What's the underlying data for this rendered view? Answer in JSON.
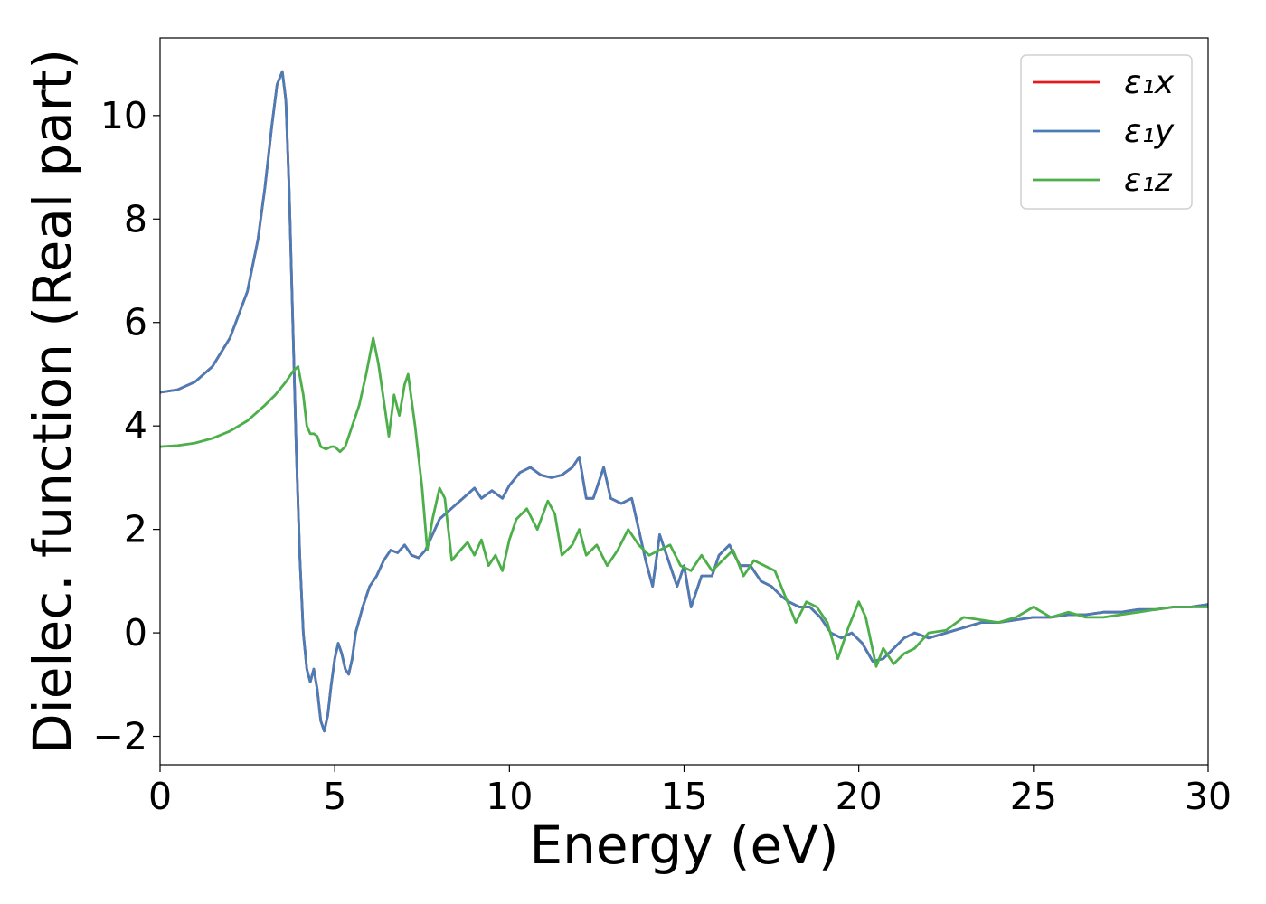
{
  "chart_data": {
    "type": "line",
    "xlabel": "Energy (eV)",
    "ylabel": "Dielec. function (Real part)",
    "xlim": [
      0,
      30
    ],
    "ylim": [
      -2.55,
      11.5
    ],
    "xticks": [
      0,
      5,
      10,
      15,
      20,
      25,
      30
    ],
    "xtick_labels": [
      "0",
      "5",
      "10",
      "15",
      "20",
      "25",
      "30"
    ],
    "yticks": [
      -2,
      0,
      2,
      4,
      6,
      8,
      10
    ],
    "ytick_labels": [
      "−2",
      "0",
      "2",
      "4",
      "6",
      "8",
      "10"
    ],
    "grid": false,
    "legend_position": "top-right",
    "series": [
      {
        "name": "ε₁x",
        "color": "#e41a1c",
        "x": [
          0,
          0.5,
          1,
          1.5,
          2,
          2.5,
          2.8,
          3.0,
          3.2,
          3.35,
          3.5,
          3.6,
          3.7,
          3.8,
          3.9,
          4.0,
          4.1,
          4.2,
          4.3,
          4.4,
          4.5,
          4.6,
          4.7,
          4.8,
          4.9,
          5.0,
          5.1,
          5.2,
          5.3,
          5.4,
          5.5,
          5.6,
          5.8,
          6.0,
          6.2,
          6.4,
          6.6,
          6.8,
          7.0,
          7.2,
          7.4,
          7.6,
          7.8,
          8.0,
          8.5,
          9.0,
          9.2,
          9.5,
          9.8,
          10.0,
          10.3,
          10.6,
          10.9,
          11.2,
          11.5,
          11.8,
          12.0,
          12.2,
          12.4,
          12.7,
          12.9,
          13.2,
          13.5,
          13.7,
          13.9,
          14.1,
          14.3,
          14.5,
          14.8,
          15.0,
          15.2,
          15.5,
          15.8,
          16.0,
          16.3,
          16.6,
          16.9,
          17.2,
          17.5,
          17.8,
          18.0,
          18.3,
          18.6,
          18.9,
          19.2,
          19.5,
          19.8,
          20.1,
          20.4,
          20.7,
          21.0,
          21.3,
          21.6,
          22.0,
          22.5,
          23.0,
          23.5,
          24.0,
          24.5,
          25.0,
          25.5,
          26.0,
          26.5,
          27.0,
          27.5,
          28.0,
          28.5,
          29.0,
          29.5,
          30.0
        ],
        "y": [
          4.65,
          4.7,
          4.85,
          5.15,
          5.7,
          6.6,
          7.6,
          8.6,
          9.8,
          10.6,
          10.85,
          10.3,
          8.5,
          6.0,
          3.5,
          1.5,
          0.0,
          -0.7,
          -0.95,
          -0.7,
          -1.1,
          -1.7,
          -1.9,
          -1.6,
          -1.0,
          -0.5,
          -0.2,
          -0.4,
          -0.7,
          -0.8,
          -0.5,
          0.0,
          0.5,
          0.9,
          1.1,
          1.4,
          1.6,
          1.55,
          1.7,
          1.5,
          1.45,
          1.6,
          1.9,
          2.2,
          2.5,
          2.8,
          2.6,
          2.75,
          2.6,
          2.85,
          3.1,
          3.2,
          3.05,
          3.0,
          3.05,
          3.2,
          3.4,
          2.6,
          2.6,
          3.2,
          2.6,
          2.5,
          2.6,
          2.0,
          1.4,
          0.9,
          1.9,
          1.5,
          0.9,
          1.3,
          0.5,
          1.1,
          1.1,
          1.5,
          1.7,
          1.3,
          1.3,
          1.0,
          0.9,
          0.7,
          0.6,
          0.5,
          0.5,
          0.3,
          0.0,
          -0.1,
          0.0,
          -0.2,
          -0.55,
          -0.5,
          -0.3,
          -0.1,
          0.0,
          -0.1,
          0.0,
          0.1,
          0.2,
          0.2,
          0.25,
          0.3,
          0.3,
          0.35,
          0.35,
          0.4,
          0.4,
          0.45,
          0.45,
          0.5,
          0.5,
          0.55
        ]
      },
      {
        "name": "ε₁y",
        "color": "#4a7db8",
        "x": [
          0,
          0.5,
          1,
          1.5,
          2,
          2.5,
          2.8,
          3.0,
          3.2,
          3.35,
          3.5,
          3.6,
          3.7,
          3.8,
          3.9,
          4.0,
          4.1,
          4.2,
          4.3,
          4.4,
          4.5,
          4.6,
          4.7,
          4.8,
          4.9,
          5.0,
          5.1,
          5.2,
          5.3,
          5.4,
          5.5,
          5.6,
          5.8,
          6.0,
          6.2,
          6.4,
          6.6,
          6.8,
          7.0,
          7.2,
          7.4,
          7.6,
          7.8,
          8.0,
          8.5,
          9.0,
          9.2,
          9.5,
          9.8,
          10.0,
          10.3,
          10.6,
          10.9,
          11.2,
          11.5,
          11.8,
          12.0,
          12.2,
          12.4,
          12.7,
          12.9,
          13.2,
          13.5,
          13.7,
          13.9,
          14.1,
          14.3,
          14.5,
          14.8,
          15.0,
          15.2,
          15.5,
          15.8,
          16.0,
          16.3,
          16.6,
          16.9,
          17.2,
          17.5,
          17.8,
          18.0,
          18.3,
          18.6,
          18.9,
          19.2,
          19.5,
          19.8,
          20.1,
          20.4,
          20.7,
          21.0,
          21.3,
          21.6,
          22.0,
          22.5,
          23.0,
          23.5,
          24.0,
          24.5,
          25.0,
          25.5,
          26.0,
          26.5,
          27.0,
          27.5,
          28.0,
          28.5,
          29.0,
          29.5,
          30.0
        ],
        "y": [
          4.65,
          4.7,
          4.85,
          5.15,
          5.7,
          6.6,
          7.6,
          8.6,
          9.8,
          10.6,
          10.85,
          10.3,
          8.5,
          6.0,
          3.5,
          1.5,
          0.0,
          -0.7,
          -0.95,
          -0.7,
          -1.1,
          -1.7,
          -1.9,
          -1.6,
          -1.0,
          -0.5,
          -0.2,
          -0.4,
          -0.7,
          -0.8,
          -0.5,
          0.0,
          0.5,
          0.9,
          1.1,
          1.4,
          1.6,
          1.55,
          1.7,
          1.5,
          1.45,
          1.6,
          1.9,
          2.2,
          2.5,
          2.8,
          2.6,
          2.75,
          2.6,
          2.85,
          3.1,
          3.2,
          3.05,
          3.0,
          3.05,
          3.2,
          3.4,
          2.6,
          2.6,
          3.2,
          2.6,
          2.5,
          2.6,
          2.0,
          1.4,
          0.9,
          1.9,
          1.5,
          0.9,
          1.3,
          0.5,
          1.1,
          1.1,
          1.5,
          1.7,
          1.3,
          1.3,
          1.0,
          0.9,
          0.7,
          0.6,
          0.5,
          0.5,
          0.3,
          0.0,
          -0.1,
          0.0,
          -0.2,
          -0.55,
          -0.5,
          -0.3,
          -0.1,
          0.0,
          -0.1,
          0.0,
          0.1,
          0.2,
          0.2,
          0.25,
          0.3,
          0.3,
          0.35,
          0.35,
          0.4,
          0.4,
          0.45,
          0.45,
          0.5,
          0.5,
          0.55
        ]
      },
      {
        "name": "ε₁z",
        "color": "#4daf4a",
        "x": [
          0,
          0.5,
          1,
          1.5,
          2,
          2.5,
          3.0,
          3.3,
          3.6,
          3.8,
          3.95,
          4.1,
          4.2,
          4.3,
          4.4,
          4.5,
          4.6,
          4.75,
          4.9,
          5.0,
          5.15,
          5.3,
          5.5,
          5.7,
          5.9,
          6.1,
          6.25,
          6.4,
          6.55,
          6.7,
          6.85,
          7.0,
          7.1,
          7.3,
          7.5,
          7.65,
          7.8,
          8.0,
          8.15,
          8.35,
          8.6,
          8.8,
          9.0,
          9.2,
          9.4,
          9.6,
          9.8,
          10.0,
          10.2,
          10.5,
          10.8,
          11.1,
          11.3,
          11.5,
          11.8,
          12.0,
          12.2,
          12.5,
          12.8,
          13.1,
          13.4,
          13.7,
          14.0,
          14.3,
          14.6,
          14.9,
          15.2,
          15.5,
          15.8,
          16.1,
          16.4,
          16.7,
          17.0,
          17.3,
          17.6,
          17.9,
          18.2,
          18.5,
          18.8,
          19.1,
          19.4,
          19.7,
          20.0,
          20.2,
          20.5,
          20.7,
          21.0,
          21.3,
          21.6,
          22.0,
          22.5,
          23.0,
          23.5,
          24.0,
          24.5,
          25.0,
          25.5,
          26.0,
          26.5,
          27.0,
          27.5,
          28.0,
          28.5,
          29.0,
          29.5,
          30.0
        ],
        "y": [
          3.6,
          3.62,
          3.67,
          3.76,
          3.9,
          4.1,
          4.4,
          4.6,
          4.85,
          5.05,
          5.15,
          4.6,
          4.0,
          3.85,
          3.85,
          3.8,
          3.6,
          3.55,
          3.6,
          3.6,
          3.5,
          3.6,
          4.0,
          4.4,
          5.0,
          5.7,
          5.2,
          4.5,
          3.8,
          4.6,
          4.2,
          4.8,
          5.0,
          4.0,
          2.8,
          1.6,
          2.2,
          2.8,
          2.6,
          1.4,
          1.6,
          1.75,
          1.5,
          1.8,
          1.3,
          1.5,
          1.2,
          1.8,
          2.2,
          2.4,
          2.0,
          2.55,
          2.3,
          1.5,
          1.7,
          2.0,
          1.5,
          1.7,
          1.3,
          1.6,
          2.0,
          1.7,
          1.5,
          1.6,
          1.7,
          1.3,
          1.2,
          1.5,
          1.2,
          1.4,
          1.6,
          1.1,
          1.4,
          1.3,
          1.2,
          0.7,
          0.2,
          0.6,
          0.5,
          0.2,
          -0.5,
          0.1,
          0.6,
          0.3,
          -0.65,
          -0.3,
          -0.6,
          -0.4,
          -0.3,
          0.0,
          0.05,
          0.3,
          0.25,
          0.2,
          0.3,
          0.5,
          0.3,
          0.4,
          0.3,
          0.3,
          0.35,
          0.4,
          0.45,
          0.5,
          0.5,
          0.5
        ]
      }
    ]
  }
}
